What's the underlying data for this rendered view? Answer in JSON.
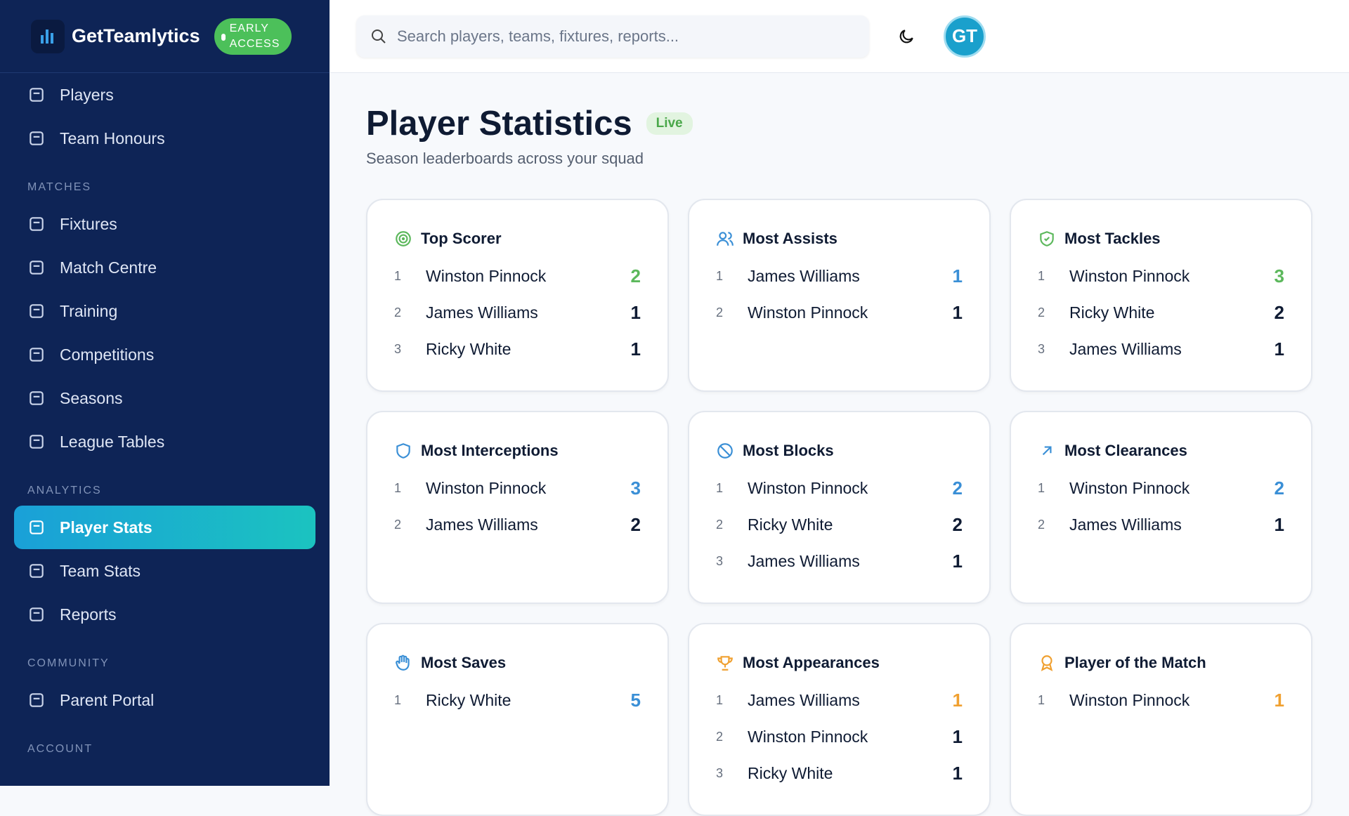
{
  "sidebar": {
    "brand": "GetTeamlytics",
    "badge": "EARLY ACCESS",
    "groups": [
      {
        "items": [
          {
            "label": "Players"
          },
          {
            "label": "Team Honours"
          }
        ]
      },
      {
        "label": "MATCHES",
        "items": [
          {
            "label": "Fixtures"
          },
          {
            "label": "Match Centre"
          },
          {
            "label": "Training"
          },
          {
            "label": "Competitions"
          },
          {
            "label": "Seasons"
          },
          {
            "label": "League Tables"
          }
        ]
      },
      {
        "label": "ANALYTICS",
        "items": [
          {
            "label": "Player Stats",
            "active": true
          },
          {
            "label": "Team Stats"
          },
          {
            "label": "Reports"
          }
        ]
      },
      {
        "label": "COMMUNITY",
        "items": [
          {
            "label": "Parent Portal"
          }
        ]
      },
      {
        "label": "ACCOUNT",
        "items": []
      }
    ]
  },
  "header": {
    "search_placeholder": "Search players, teams, fixtures, reports...",
    "avatar": "GT"
  },
  "page": {
    "title": "Player Statistics",
    "badge": "Live",
    "subtitle": "Season leaderboards across your squad"
  },
  "cards": [
    {
      "title": "Top Scorer",
      "color": "#5cb85c",
      "rows": [
        [
          1,
          "Winston Pinnock",
          2
        ],
        [
          2,
          "James Williams",
          1
        ],
        [
          3,
          "Ricky White",
          1
        ]
      ]
    },
    {
      "title": "Most Assists",
      "color": "#3a8fd6",
      "rows": [
        [
          1,
          "James Williams",
          1
        ],
        [
          2,
          "Winston Pinnock",
          1
        ]
      ]
    },
    {
      "title": "Most Tackles",
      "color": "#5cb85c",
      "rows": [
        [
          1,
          "Winston Pinnock",
          3
        ],
        [
          2,
          "Ricky White",
          2
        ],
        [
          3,
          "James Williams",
          1
        ]
      ]
    },
    {
      "title": "Most Interceptions",
      "color": "#3a8fd6",
      "rows": [
        [
          1,
          "Winston Pinnock",
          3
        ],
        [
          2,
          "James Williams",
          2
        ]
      ]
    },
    {
      "title": "Most Blocks",
      "color": "#3a8fd6",
      "rows": [
        [
          1,
          "Winston Pinnock",
          2
        ],
        [
          2,
          "Ricky White",
          2
        ],
        [
          3,
          "James Williams",
          1
        ]
      ]
    },
    {
      "title": "Most Clearances",
      "color": "#3a8fd6",
      "rows": [
        [
          1,
          "Winston Pinnock",
          2
        ],
        [
          2,
          "James Williams",
          1
        ]
      ]
    },
    {
      "title": "Most Saves",
      "color": "#3a8fd6",
      "rows": [
        [
          1,
          "Ricky White",
          5
        ]
      ]
    },
    {
      "title": "Most Appearances",
      "color": "#f0a030",
      "rows": [
        [
          1,
          "James Williams",
          1
        ],
        [
          2,
          "Winston Pinnock",
          1
        ],
        [
          3,
          "Ricky White",
          1
        ]
      ]
    },
    {
      "title": "Player of the Match",
      "color": "#f0a030",
      "rows": [
        [
          1,
          "Winston Pinnock",
          1
        ]
      ]
    }
  ]
}
